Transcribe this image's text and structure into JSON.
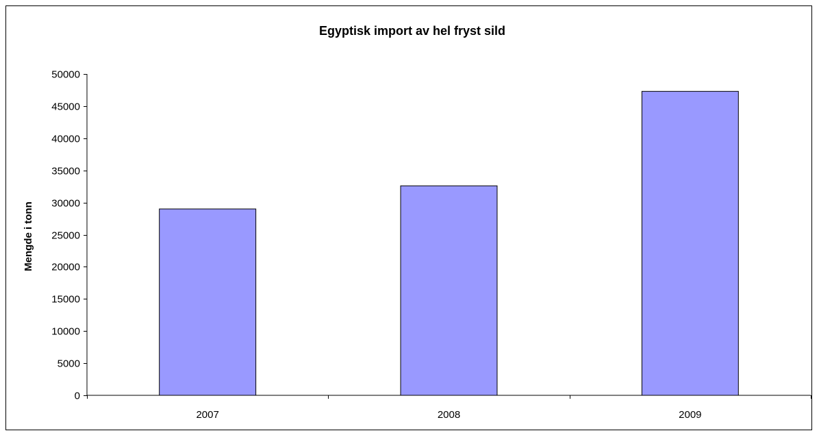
{
  "chart_data": {
    "type": "bar",
    "title": "Egyptisk import av hel fryst sild",
    "xlabel": "",
    "ylabel": "Mengde i tonn",
    "categories": [
      "2007",
      "2008",
      "2009"
    ],
    "values": [
      29000,
      32600,
      47300
    ],
    "ylim": [
      0,
      50000
    ],
    "yticks": [
      "0",
      "5000",
      "10000",
      "15000",
      "20000",
      "25000",
      "30000",
      "35000",
      "40000",
      "45000",
      "50000"
    ],
    "grid": false,
    "legend": "none",
    "bar_color": "#9999ff",
    "bar_edge_color": "#000000"
  }
}
